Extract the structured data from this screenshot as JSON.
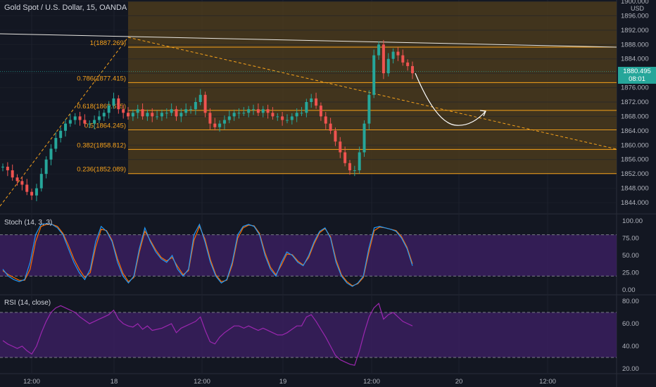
{
  "header": {
    "title": "Gold Spot / U.S. Dollar, 15, OANDA",
    "currency": "USD"
  },
  "current_price": {
    "value": "1880.495",
    "countdown": "08:01"
  },
  "panes": {
    "stoch": {
      "label": "Stoch (14, 3, 3)"
    },
    "rsi": {
      "label": "RSI (14, close)"
    }
  },
  "colors": {
    "up": "#26a69a",
    "down": "#ef5350",
    "fib": "#f7a21b",
    "stoch_k": "#2196f3",
    "stoch_d": "#ff6d00",
    "rsi": "#9c27b0",
    "band": "#3a1f5e"
  },
  "chart_data": [
    {
      "type": "candlestick",
      "title": "Gold Spot / U.S. Dollar, 15, OANDA",
      "ylim": [
        1842,
        1900
      ],
      "price_ticks": [
        "1900.000",
        "1896.000",
        "1892.000",
        "1888.000",
        "1884.000",
        "1880.000",
        "1876.000",
        "1872.000",
        "1868.000",
        "1864.000",
        "1860.000",
        "1856.000",
        "1852.000",
        "1848.000",
        "1844.000"
      ],
      "x_ticks": [
        "12:00",
        "18",
        "12:00",
        "19",
        "12:00",
        "20",
        "12:00"
      ],
      "fib_levels": [
        {
          "label": "1(1887.269)",
          "value": 1887.269
        },
        {
          "label": "0.786(1877.415)",
          "value": 1877.415
        },
        {
          "label": "0.618(1869.675)",
          "value": 1869.675
        },
        {
          "label": "0.5(1864.245)",
          "value": 1864.245
        },
        {
          "label": "0.382(1858.812)",
          "value": 1858.812
        },
        {
          "label": "0.236(1852.089)",
          "value": 1852.089
        }
      ],
      "close_series": [
        1854,
        1853,
        1851,
        1850,
        1849,
        1847,
        1846,
        1848,
        1852,
        1856,
        1859,
        1862,
        1864,
        1866,
        1867,
        1868,
        1867,
        1866,
        1866,
        1867,
        1868,
        1869,
        1871,
        1873,
        1870,
        1869,
        1868,
        1869,
        1870,
        1868,
        1869,
        1868,
        1868,
        1869,
        1869,
        1870,
        1868,
        1869,
        1870,
        1870,
        1872,
        1874,
        1869,
        1866,
        1865,
        1866,
        1867,
        1868,
        1869,
        1869,
        1869,
        1870,
        1870,
        1869,
        1870,
        1869,
        1868,
        1868,
        1867,
        1867,
        1868,
        1869,
        1869,
        1872,
        1873,
        1871,
        1868,
        1866,
        1864,
        1861,
        1858,
        1855,
        1853,
        1853,
        1858,
        1866,
        1874,
        1885,
        1888,
        1880,
        1884,
        1886,
        1885,
        1883,
        1882,
        1880
      ],
      "projection": "curve down to ~1865 then up"
    },
    {
      "type": "line",
      "title": "Stoch (14, 3, 3)",
      "ylim": [
        0,
        100
      ],
      "y_ticks": [
        "100.00",
        "75.00",
        "50.00",
        "25.00",
        "0.00"
      ],
      "bands": [
        20,
        80
      ],
      "series": [
        {
          "name": "%K",
          "values": [
            30,
            20,
            15,
            12,
            15,
            40,
            80,
            95,
            96,
            95,
            90,
            80,
            60,
            40,
            25,
            15,
            30,
            70,
            92,
            85,
            70,
            40,
            20,
            10,
            20,
            60,
            90,
            70,
            55,
            45,
            40,
            50,
            30,
            20,
            30,
            80,
            95,
            70,
            40,
            20,
            10,
            15,
            40,
            80,
            92,
            95,
            92,
            80,
            50,
            30,
            20,
            40,
            55,
            50,
            40,
            35,
            50,
            70,
            85,
            90,
            75,
            40,
            20,
            10,
            5,
            10,
            20,
            60,
            90,
            92,
            90,
            88,
            85,
            75,
            60,
            35
          ]
        },
        {
          "name": "%D",
          "values": [
            28,
            22,
            18,
            14,
            14,
            30,
            70,
            92,
            95,
            95,
            92,
            82,
            65,
            45,
            30,
            18,
            25,
            62,
            88,
            86,
            72,
            45,
            24,
            12,
            18,
            55,
            85,
            72,
            58,
            47,
            42,
            47,
            34,
            22,
            28,
            72,
            92,
            74,
            44,
            22,
            12,
            14,
            36,
            75,
            90,
            94,
            93,
            82,
            54,
            33,
            22,
            36,
            52,
            51,
            42,
            36,
            47,
            67,
            83,
            89,
            77,
            44,
            22,
            12,
            6,
            9,
            18,
            54,
            86,
            91,
            90,
            88,
            86,
            77,
            62,
            38
          ]
        }
      ]
    },
    {
      "type": "line",
      "title": "RSI (14, close)",
      "ylim": [
        20,
        80
      ],
      "y_ticks": [
        "80.00",
        "60.00",
        "40.00",
        "20.00"
      ],
      "bands": [
        30,
        70
      ],
      "series": [
        {
          "name": "RSI",
          "values": [
            45,
            42,
            40,
            38,
            40,
            36,
            33,
            40,
            52,
            62,
            70,
            74,
            76,
            74,
            72,
            70,
            66,
            63,
            60,
            62,
            64,
            66,
            68,
            72,
            64,
            60,
            58,
            57,
            60,
            55,
            58,
            54,
            55,
            56,
            58,
            60,
            52,
            56,
            58,
            60,
            62,
            66,
            54,
            44,
            42,
            48,
            52,
            55,
            58,
            58,
            56,
            58,
            56,
            54,
            56,
            54,
            52,
            50,
            50,
            52,
            55,
            58,
            58,
            66,
            68,
            62,
            55,
            48,
            40,
            32,
            28,
            26,
            24,
            23,
            36,
            52,
            66,
            74,
            78,
            64,
            68,
            70,
            66,
            62,
            60,
            58
          ]
        }
      ]
    }
  ]
}
